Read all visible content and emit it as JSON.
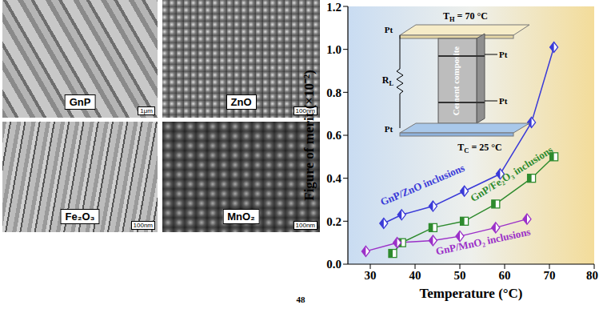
{
  "chart_data": {
    "type": "line",
    "x_label": "Temperature (°C)",
    "y_label": "Figure of merit (×10⁻²)",
    "xlim": [
      25,
      80
    ],
    "xticks": [
      30,
      40,
      50,
      60,
      70,
      80
    ],
    "ylim": [
      0,
      1.2
    ],
    "yticks": [
      {
        "value": 0,
        "label": "0.0"
      },
      0.2,
      0.4,
      0.6,
      0.8,
      {
        "value": 1,
        "label": "1.0"
      },
      1.2
    ],
    "grid": false,
    "series": [
      {
        "name": "GnP/ZnO inclusions",
        "color": "#3a3ad8",
        "marker": "diamond",
        "x": [
          33,
          37,
          44,
          51,
          59,
          66,
          71
        ],
        "values": [
          0.19,
          0.23,
          0.27,
          0.34,
          0.42,
          0.66,
          1.01
        ]
      },
      {
        "name": "GnP/Fe₂O₃ inclusions",
        "color": "#2e8b2e",
        "marker": "square",
        "x": [
          35,
          37,
          44,
          51,
          58,
          66,
          71
        ],
        "values": [
          0.05,
          0.1,
          0.17,
          0.2,
          0.28,
          0.4,
          0.5
        ]
      },
      {
        "name": "GnP/MnO₂ inclusions",
        "color": "#9b30c8",
        "marker": "diamond",
        "x": [
          29,
          36,
          44,
          50,
          58,
          65
        ],
        "values": [
          0.06,
          0.1,
          0.11,
          0.13,
          0.17,
          0.21
        ]
      }
    ]
  },
  "inset": {
    "hot_side": {
      "symbol": "T",
      "subscript": "H",
      "text": " = 70 °C"
    },
    "cold_side": {
      "symbol": "T",
      "subscript": "C",
      "text": " = 25 °C"
    },
    "load": {
      "symbol": "R",
      "subscript": "L"
    },
    "electrodes": [
      "Pt",
      "Pt",
      "Pt",
      "Pt"
    ],
    "sample": "Cement composite"
  },
  "sem_images": [
    {
      "label": "GnP",
      "scale_bar": "1μm"
    },
    {
      "label": "ZnO",
      "scale_bar": "100nm"
    },
    {
      "label": "Fe₂O₃",
      "scale_bar": "100nm"
    },
    {
      "label": "MnO₂",
      "scale_bar": "100nm"
    }
  ],
  "page_number": "48"
}
